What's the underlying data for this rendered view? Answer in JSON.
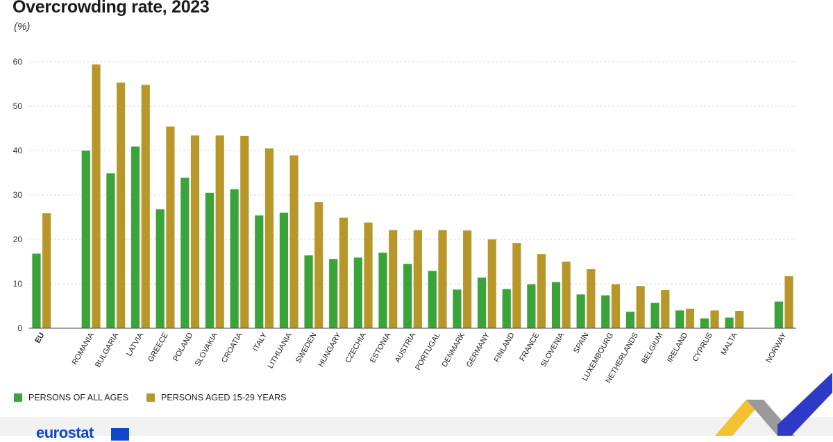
{
  "header": {
    "title": "Overcrowding rate, 2023",
    "unit": "(%)"
  },
  "colors": {
    "series_all_ages": "#3aa33a",
    "series_15_29": "#b8972a",
    "grid": "#d9d9d9",
    "axis": "#444444"
  },
  "footer": {
    "logo_text": "eurostat"
  },
  "chart_data": {
    "type": "bar",
    "title": "Overcrowding rate, 2023",
    "ylabel": "(%)",
    "xlabel": "",
    "ylim": [
      0,
      60
    ],
    "yticks": [
      0,
      10,
      20,
      30,
      40,
      50,
      60
    ],
    "grid": true,
    "legend_position": "bottom-left",
    "bold_categories": [
      "EU"
    ],
    "categories": [
      "EU",
      "",
      "ROMANIA",
      "BULGARIA",
      "LATVIA",
      "GREECE",
      "POLAND",
      "SLOVAKIA",
      "CROATIA",
      "ITALY",
      "LITHUANIA",
      "SWEDEN",
      "HUNGARY",
      "CZECHIA",
      "ESTONIA",
      "AUSTRIA",
      "PORTUGAL",
      "DENMARK",
      "GERMANY",
      "FINLAND",
      "FRANCE",
      "SLOVENIA",
      "SPAIN",
      "LUXEMBOURG",
      "NETHERLANDS",
      "BELGIUM",
      "IRELAND",
      "CYPRUS",
      "MALTA",
      "",
      "NORWAY"
    ],
    "series": [
      {
        "name": "PERSONS OF ALL AGES",
        "values": [
          16.8,
          null,
          40.0,
          34.9,
          40.9,
          26.8,
          33.9,
          30.5,
          31.3,
          25.4,
          26.0,
          16.4,
          15.6,
          15.9,
          17.0,
          14.5,
          12.9,
          8.7,
          11.4,
          8.8,
          9.9,
          10.4,
          7.6,
          7.4,
          3.7,
          5.7,
          4.0,
          2.2,
          2.4,
          null,
          6.0
        ]
      },
      {
        "name": "PERSONS AGED 15-29 YEARS",
        "values": [
          25.9,
          null,
          59.4,
          55.3,
          54.8,
          45.4,
          43.4,
          43.4,
          43.3,
          40.5,
          38.9,
          28.4,
          24.9,
          23.8,
          22.1,
          22.1,
          22.1,
          22.0,
          20.0,
          19.2,
          16.7,
          15.0,
          13.3,
          9.9,
          9.5,
          8.6,
          4.4,
          4.0,
          3.9,
          null,
          11.7
        ]
      }
    ]
  }
}
